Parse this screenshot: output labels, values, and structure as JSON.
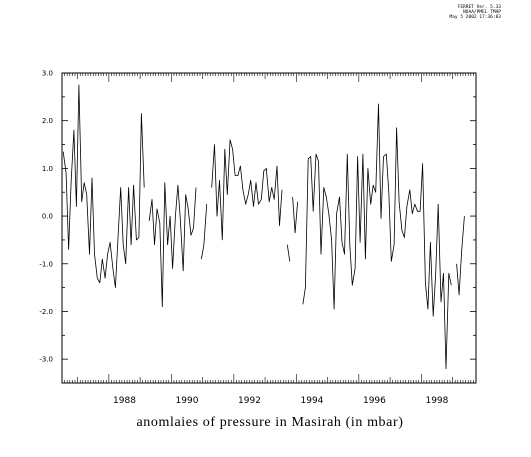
{
  "stamp": {
    "line1": "FERRET Ver. 5.33",
    "line2": "NOAA/PMEL TMAP",
    "line3": "May 5 2002 17:36:03"
  },
  "chart_data": {
    "type": "line",
    "title": "",
    "xlabel": "anomlaies of pressure in Masirah (in mbar)",
    "ylabel": "",
    "xlim": [
      1986.5,
      1999.75
    ],
    "ylim": [
      -3.5,
      3.0
    ],
    "yticks": [
      3.0,
      2.0,
      1.0,
      0.0,
      -1.0,
      -2.0,
      -3.0
    ],
    "ytick_labels": [
      "3.0",
      "2.0",
      "1.0",
      "0.0",
      "-1.0",
      "-2.0",
      "-3.0"
    ],
    "xticks": [
      1988,
      1990,
      1992,
      1994,
      1996,
      1998
    ],
    "xtick_labels": [
      "1988",
      "1990",
      "1992",
      "1994",
      "1996",
      "1998"
    ],
    "grid": false,
    "series": [
      {
        "name": "",
        "color": "#000000",
        "segments": [
          [
            [
              1986.54,
              1.35
            ],
            [
              1986.63,
              0.9
            ],
            [
              1986.71,
              -0.7
            ],
            [
              1986.79,
              0.7
            ],
            [
              1986.88,
              1.8
            ],
            [
              1986.96,
              0.2
            ],
            [
              1987.04,
              2.75
            ],
            [
              1987.13,
              0.3
            ],
            [
              1987.21,
              0.7
            ],
            [
              1987.29,
              0.45
            ],
            [
              1987.38,
              -0.8
            ],
            [
              1987.46,
              0.8
            ],
            [
              1987.54,
              -0.8
            ],
            [
              1987.63,
              -1.3
            ],
            [
              1987.71,
              -1.4
            ],
            [
              1987.79,
              -0.9
            ],
            [
              1987.88,
              -1.3
            ],
            [
              1987.96,
              -0.8
            ],
            [
              1988.04,
              -0.55
            ],
            [
              1988.13,
              -1.1
            ],
            [
              1988.21,
              -1.5
            ],
            [
              1988.29,
              -0.5
            ],
            [
              1988.38,
              0.6
            ],
            [
              1988.46,
              -0.6
            ],
            [
              1988.54,
              -1.0
            ],
            [
              1988.63,
              0.6
            ],
            [
              1988.71,
              -0.6
            ],
            [
              1988.79,
              0.65
            ],
            [
              1988.88,
              -0.5
            ],
            [
              1988.96,
              -0.45
            ],
            [
              1989.04,
              2.15
            ],
            [
              1989.13,
              0.6
            ]
          ],
          [
            [
              1989.29,
              -0.1
            ],
            [
              1989.38,
              0.35
            ],
            [
              1989.46,
              -0.6
            ],
            [
              1989.54,
              0.15
            ],
            [
              1989.63,
              -0.15
            ],
            [
              1989.71,
              -1.9
            ],
            [
              1989.79,
              0.7
            ],
            [
              1989.88,
              -0.6
            ],
            [
              1989.96,
              0.0
            ],
            [
              1990.04,
              -1.1
            ],
            [
              1990.13,
              0.0
            ],
            [
              1990.21,
              0.65
            ],
            [
              1990.29,
              -0.1
            ],
            [
              1990.38,
              -1.15
            ],
            [
              1990.46,
              0.45
            ],
            [
              1990.54,
              0.15
            ],
            [
              1990.63,
              -0.4
            ],
            [
              1990.71,
              -0.25
            ],
            [
              1990.79,
              0.6
            ]
          ],
          [
            [
              1990.96,
              -0.9
            ],
            [
              1991.04,
              -0.6
            ],
            [
              1991.13,
              0.25
            ]
          ],
          [
            [
              1991.29,
              0.6
            ],
            [
              1991.38,
              1.5
            ],
            [
              1991.46,
              0.0
            ],
            [
              1991.54,
              0.75
            ],
            [
              1991.63,
              -0.5
            ],
            [
              1991.71,
              1.4
            ],
            [
              1991.79,
              0.45
            ],
            [
              1991.88,
              1.6
            ],
            [
              1991.96,
              1.4
            ],
            [
              1992.04,
              0.85
            ],
            [
              1992.13,
              0.85
            ],
            [
              1992.21,
              1.05
            ],
            [
              1992.29,
              0.55
            ],
            [
              1992.38,
              0.25
            ],
            [
              1992.46,
              0.45
            ],
            [
              1992.54,
              0.75
            ],
            [
              1992.63,
              0.2
            ],
            [
              1992.71,
              0.7
            ],
            [
              1992.79,
              0.25
            ],
            [
              1992.88,
              0.35
            ],
            [
              1992.96,
              0.95
            ],
            [
              1993.04,
              1.0
            ],
            [
              1993.13,
              0.3
            ],
            [
              1993.21,
              0.6
            ],
            [
              1993.29,
              0.35
            ],
            [
              1993.38,
              1.05
            ],
            [
              1993.46,
              -0.2
            ],
            [
              1993.54,
              0.55
            ]
          ],
          [
            [
              1993.71,
              -0.6
            ],
            [
              1993.79,
              -0.95
            ]
          ],
          [
            [
              1993.88,
              0.4
            ],
            [
              1993.96,
              -0.35
            ],
            [
              1994.04,
              0.3
            ]
          ],
          [
            [
              1994.21,
              -1.85
            ],
            [
              1994.29,
              -1.5
            ],
            [
              1994.38,
              1.2
            ],
            [
              1994.46,
              1.25
            ],
            [
              1994.54,
              0.1
            ],
            [
              1994.63,
              1.3
            ],
            [
              1994.71,
              1.15
            ],
            [
              1994.79,
              -0.8
            ],
            [
              1994.88,
              0.6
            ],
            [
              1994.96,
              0.4
            ],
            [
              1995.04,
              0.05
            ],
            [
              1995.13,
              -0.5
            ],
            [
              1995.21,
              -1.95
            ],
            [
              1995.29,
              0.05
            ],
            [
              1995.38,
              0.4
            ],
            [
              1995.46,
              -0.55
            ],
            [
              1995.54,
              -0.8
            ],
            [
              1995.63,
              1.3
            ],
            [
              1995.71,
              -0.6
            ],
            [
              1995.79,
              -1.45
            ],
            [
              1995.88,
              -1.1
            ],
            [
              1995.96,
              1.25
            ],
            [
              1996.04,
              -0.55
            ],
            [
              1996.13,
              1.3
            ],
            [
              1996.21,
              -0.9
            ],
            [
              1996.29,
              1.0
            ],
            [
              1996.38,
              0.25
            ],
            [
              1996.46,
              0.65
            ],
            [
              1996.54,
              0.5
            ],
            [
              1996.63,
              2.35
            ],
            [
              1996.71,
              -0.05
            ],
            [
              1996.79,
              1.25
            ],
            [
              1996.88,
              1.3
            ],
            [
              1996.96,
              0.5
            ],
            [
              1997.04,
              -0.95
            ],
            [
              1997.13,
              -0.6
            ],
            [
              1997.21,
              1.85
            ],
            [
              1997.29,
              0.3
            ],
            [
              1997.38,
              -0.3
            ],
            [
              1997.46,
              -0.45
            ],
            [
              1997.54,
              0.2
            ],
            [
              1997.63,
              0.55
            ],
            [
              1997.71,
              0.05
            ],
            [
              1997.79,
              0.25
            ],
            [
              1997.88,
              0.1
            ],
            [
              1997.96,
              0.1
            ],
            [
              1998.04,
              1.1
            ],
            [
              1998.13,
              -1.4
            ],
            [
              1998.21,
              -1.95
            ],
            [
              1998.29,
              -0.55
            ],
            [
              1998.38,
              -2.1
            ],
            [
              1998.46,
              -1.2
            ],
            [
              1998.54,
              0.25
            ],
            [
              1998.63,
              -1.8
            ],
            [
              1998.71,
              -1.2
            ],
            [
              1998.79,
              -3.2
            ],
            [
              1998.88,
              -1.2
            ],
            [
              1998.96,
              -1.45
            ]
          ],
          [
            [
              1999.13,
              -1.0
            ],
            [
              1999.21,
              -1.65
            ],
            [
              1999.29,
              -0.75
            ],
            [
              1999.38,
              0.0
            ]
          ]
        ]
      }
    ]
  }
}
